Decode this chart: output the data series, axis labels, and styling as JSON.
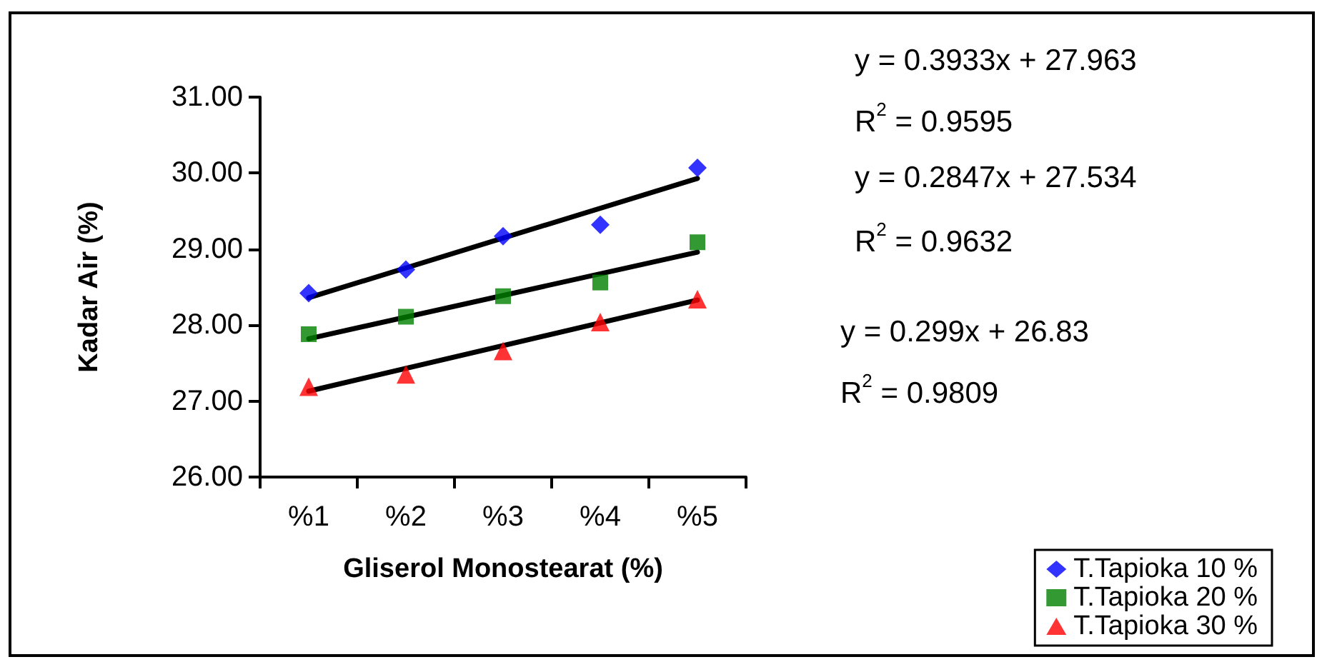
{
  "chart_data": {
    "type": "scatter",
    "xlabel": "Gliserol Monostearat (%)",
    "ylabel": "Kadar Air (%)",
    "categories": [
      "%1",
      "%2",
      "%3",
      "%4",
      "%5"
    ],
    "ylim": [
      26,
      31
    ],
    "yticks": [
      {
        "value": 26,
        "label": "26.00"
      },
      {
        "value": 27,
        "label": "27.00"
      },
      {
        "value": 28,
        "label": "28.00"
      },
      {
        "value": 29,
        "label": "29.00"
      },
      {
        "value": 30,
        "label": "30.00"
      },
      {
        "value": 31,
        "label": "31.00"
      }
    ],
    "grid": false,
    "legend": "bottom right",
    "series": [
      {
        "name": "T.Tapioka 10 %",
        "color": "#0000ff",
        "marker": "diamond",
        "values": [
          28.42,
          28.73,
          29.17,
          29.32,
          30.07
        ]
      },
      {
        "name": "T.Tapioka 20 %",
        "color": "#008000",
        "marker": "square",
        "values": [
          27.88,
          28.11,
          28.38,
          28.56,
          29.09
        ]
      },
      {
        "name": "T.Tapioka 30 %",
        "color": "#ff0000",
        "marker": "triangle",
        "values": [
          27.19,
          27.35,
          27.66,
          28.04,
          28.34
        ]
      },
      {
        "type": "line",
        "color": "#000000",
        "marker": "none",
        "x": [
          "%1",
          "%5"
        ],
        "values": [
          28.36,
          29.93
        ]
      },
      {
        "type": "line",
        "color": "#000000",
        "marker": "none",
        "x": [
          "%1",
          "%5"
        ],
        "values": [
          27.82,
          28.96
        ]
      },
      {
        "type": "line",
        "color": "#000000",
        "marker": "none",
        "x": [
          "%1",
          "%5"
        ],
        "values": [
          27.13,
          28.33
        ]
      }
    ],
    "annotations": [
      "y = 0.3933x + 27.963",
      "R$^{2}$ = 0.9595",
      "y = 0.2847x + 27.534",
      "R$^{2}$ = 0.9632",
      "y = 0.299x + 26.83",
      "R$^{2}$ = 0.9809"
    ]
  }
}
